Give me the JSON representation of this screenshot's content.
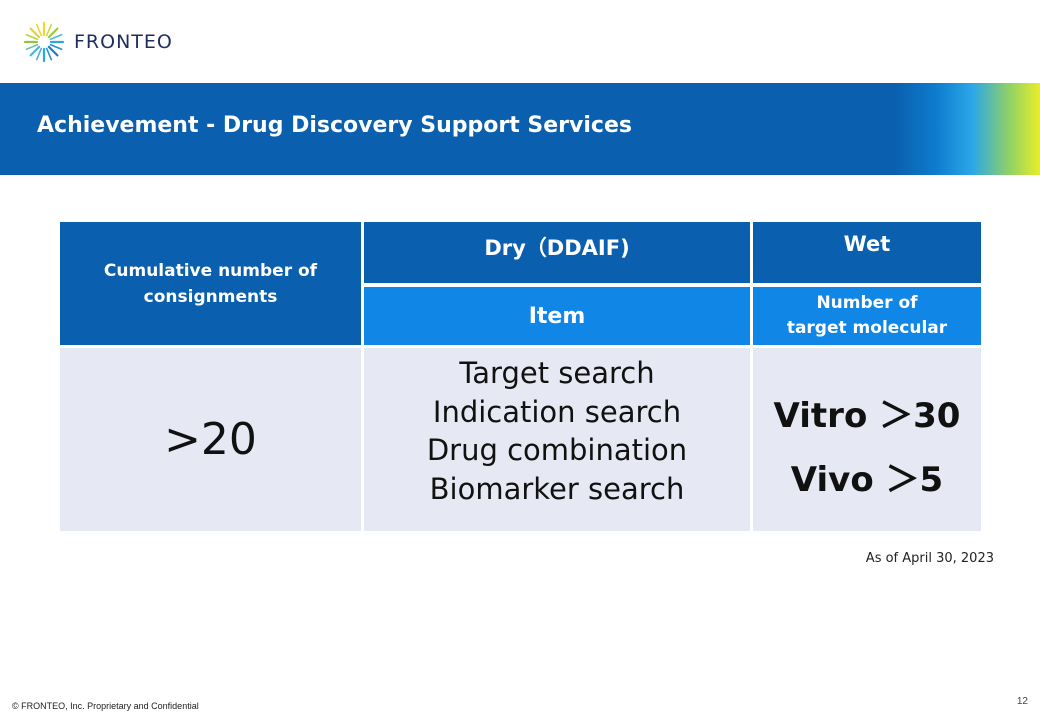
{
  "logo": {
    "text": "FRONTEO"
  },
  "title": "Achievement - Drug Discovery Support Services",
  "table": {
    "cumulative_label": "Cumulative number of consignments",
    "dry_label": "Dry（DDAIF)",
    "wet_label": "Wet",
    "item_label": "Item",
    "number_label_line1": "Number of",
    "number_label_line2": "target molecular",
    "count_value": ">20",
    "items": [
      "Target search",
      "Indication search",
      "Drug combination",
      "Biomarker search"
    ],
    "vitro": "Vitro ＞30",
    "vivo": "Vivo ＞5"
  },
  "as_of": "As of April 30, 2023",
  "footer": "© FRONTEO, Inc.  Proprietary and Confidential",
  "page_number": "12",
  "colors": {
    "header_blue": "#0a5fae",
    "subheader_blue": "#1086e6",
    "cell_bg": "#e6e9f3"
  }
}
